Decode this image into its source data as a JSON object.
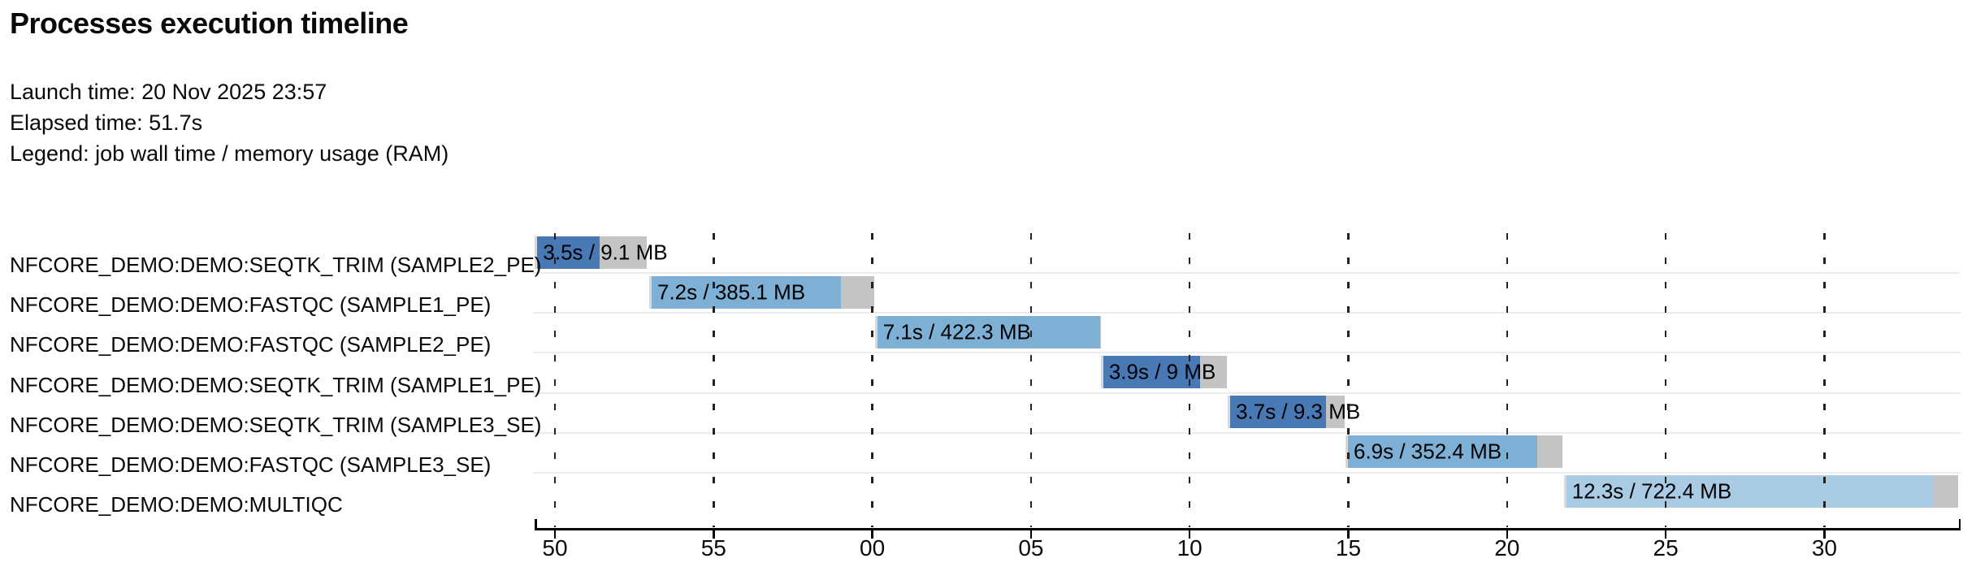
{
  "header": {
    "title": "Processes execution timeline",
    "launch": "Launch time: 20 Nov 2025 23:57",
    "elapsed": "Elapsed time: 51.7s",
    "legend": "Legend: job wall time / memory usage (RAM)"
  },
  "colors": {
    "seqtk_trim": "#4879B4",
    "fastqc": "#7EB0D6",
    "multiqc": "#A9CBE3",
    "tail": "#C4C4C4",
    "submit": "#D8D8D8",
    "grid": "#222222",
    "separator": "#ececec",
    "axis": "#000000",
    "text": "#0a0a0a"
  },
  "chart_data": {
    "type": "timeline-gantt",
    "title": "Processes execution timeline",
    "legend_note": "job wall time / memory usage (RAM)",
    "x_axis": {
      "tick_labels": [
        "50",
        "55",
        "00",
        "05",
        "10",
        "15",
        "20",
        "25",
        "30"
      ],
      "tick_seconds": [
        50,
        55,
        60,
        65,
        70,
        75,
        80,
        85,
        90
      ],
      "domain_seconds": [
        49.37,
        94.28
      ],
      "grid": true,
      "grid_style": "dashed"
    },
    "tasks": [
      {
        "name": "NFCORE_DEMO:DEMO:SEQTK_TRIM (SAMPLE2_PE)",
        "process": "seqtk_trim",
        "bar_label": "3.5s / 9.1 MB",
        "wall_time": "3.5s",
        "memory": "9.1 MB",
        "submit_s": 49.37,
        "start_s": 49.43,
        "realtime_end_s": 51.42,
        "complete_s": 52.9
      },
      {
        "name": "NFCORE_DEMO:DEMO:FASTQC (SAMPLE1_PE)",
        "process": "fastqc",
        "bar_label": "7.2s / 385.1 MB",
        "wall_time": "7.2s",
        "memory": "385.1 MB",
        "submit_s": 52.97,
        "start_s": 53.05,
        "realtime_end_s": 59.0,
        "complete_s": 60.07
      },
      {
        "name": "NFCORE_DEMO:DEMO:FASTQC (SAMPLE2_PE)",
        "process": "fastqc",
        "bar_label": "7.1s / 422.3 MB",
        "wall_time": "7.1s",
        "memory": "422.3 MB",
        "submit_s": 60.08,
        "start_s": 60.16,
        "realtime_end_s": 67.17,
        "complete_s": 67.18
      },
      {
        "name": "NFCORE_DEMO:DEMO:SEQTK_TRIM (SAMPLE1_PE)",
        "process": "seqtk_trim",
        "bar_label": "3.9s / 9 MB",
        "wall_time": "3.9s",
        "memory": "9 MB",
        "submit_s": 67.2,
        "start_s": 67.28,
        "realtime_end_s": 70.32,
        "complete_s": 71.17
      },
      {
        "name": "NFCORE_DEMO:DEMO:SEQTK_TRIM (SAMPLE3_SE)",
        "process": "seqtk_trim",
        "bar_label": "3.7s / 9.3 MB",
        "wall_time": "3.7s",
        "memory": "9.3 MB",
        "submit_s": 71.2,
        "start_s": 71.28,
        "realtime_end_s": 74.3,
        "complete_s": 74.89
      },
      {
        "name": "NFCORE_DEMO:DEMO:FASTQC (SAMPLE3_SE)",
        "process": "fastqc",
        "bar_label": "6.9s / 352.4 MB",
        "wall_time": "6.9s",
        "memory": "352.4 MB",
        "submit_s": 74.91,
        "start_s": 74.99,
        "realtime_end_s": 80.95,
        "complete_s": 81.74
      },
      {
        "name": "NFCORE_DEMO:DEMO:MULTIQC",
        "process": "multiqc",
        "bar_label": "12.3s / 722.4 MB",
        "wall_time": "12.3s",
        "memory": "722.4 MB",
        "submit_s": 81.79,
        "start_s": 81.87,
        "realtime_end_s": 93.45,
        "complete_s": 94.22
      }
    ]
  }
}
